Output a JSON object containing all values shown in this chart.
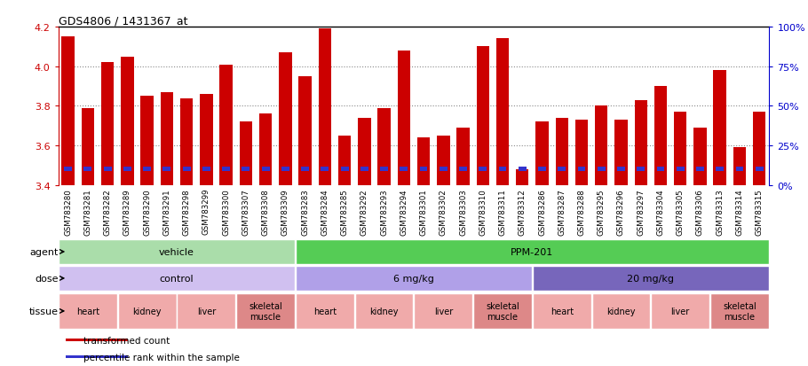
{
  "title": "GDS4806 / 1431367_at",
  "samples": [
    "GSM783280",
    "GSM783281",
    "GSM783282",
    "GSM783289",
    "GSM783290",
    "GSM783291",
    "GSM783298",
    "GSM783299",
    "GSM783300",
    "GSM783307",
    "GSM783308",
    "GSM783309",
    "GSM783283",
    "GSM783284",
    "GSM783285",
    "GSM783292",
    "GSM783293",
    "GSM783294",
    "GSM783301",
    "GSM783302",
    "GSM783303",
    "GSM783310",
    "GSM783311",
    "GSM783312",
    "GSM783286",
    "GSM783287",
    "GSM783288",
    "GSM783295",
    "GSM783296",
    "GSM783297",
    "GSM783304",
    "GSM783305",
    "GSM783306",
    "GSM783313",
    "GSM783314",
    "GSM783315"
  ],
  "bar_values": [
    4.15,
    3.79,
    4.02,
    4.05,
    3.85,
    3.87,
    3.84,
    3.86,
    4.01,
    3.72,
    3.76,
    4.07,
    3.95,
    4.19,
    3.65,
    3.74,
    3.79,
    4.08,
    3.64,
    3.65,
    3.69,
    4.1,
    4.14,
    3.48,
    3.72,
    3.74,
    3.73,
    3.8,
    3.73,
    3.83,
    3.9,
    3.77,
    3.69,
    3.98,
    3.59,
    3.77
  ],
  "blue_percentiles": [
    10,
    8,
    8,
    8,
    9,
    10,
    9,
    9,
    9,
    8,
    8,
    8,
    9,
    9,
    10,
    8,
    8,
    9,
    8,
    8,
    8,
    8,
    8,
    8,
    8,
    8,
    8,
    8,
    8,
    8,
    9,
    8,
    8,
    9,
    8,
    8
  ],
  "ymin": 3.4,
  "ymax": 4.2,
  "yticks_left": [
    3.4,
    3.6,
    3.8,
    4.0,
    4.2
  ],
  "yticks_right": [
    0,
    25,
    50,
    75,
    100
  ],
  "bar_color": "#cc0000",
  "blue_color": "#3333cc",
  "agent_groups": [
    {
      "label": "vehicle",
      "start": 0,
      "end": 11,
      "color": "#aaddaa"
    },
    {
      "label": "PPM-201",
      "start": 12,
      "end": 35,
      "color": "#55cc55"
    }
  ],
  "dose_groups": [
    {
      "label": "control",
      "start": 0,
      "end": 11,
      "color": "#d0c0f0"
    },
    {
      "label": "6 mg/kg",
      "start": 12,
      "end": 23,
      "color": "#b0a0e8"
    },
    {
      "label": "20 mg/kg",
      "start": 24,
      "end": 35,
      "color": "#7766bb"
    }
  ],
  "tissue_groups": [
    {
      "label": "heart",
      "start": 0,
      "end": 2,
      "color": "#f0aaaa"
    },
    {
      "label": "kidney",
      "start": 3,
      "end": 5,
      "color": "#f0aaaa"
    },
    {
      "label": "liver",
      "start": 6,
      "end": 8,
      "color": "#f0aaaa"
    },
    {
      "label": "skeletal\nmuscle",
      "start": 9,
      "end": 11,
      "color": "#dd8888"
    },
    {
      "label": "heart",
      "start": 12,
      "end": 14,
      "color": "#f0aaaa"
    },
    {
      "label": "kidney",
      "start": 15,
      "end": 17,
      "color": "#f0aaaa"
    },
    {
      "label": "liver",
      "start": 18,
      "end": 20,
      "color": "#f0aaaa"
    },
    {
      "label": "skeletal\nmuscle",
      "start": 21,
      "end": 23,
      "color": "#dd8888"
    },
    {
      "label": "heart",
      "start": 24,
      "end": 26,
      "color": "#f0aaaa"
    },
    {
      "label": "kidney",
      "start": 27,
      "end": 29,
      "color": "#f0aaaa"
    },
    {
      "label": "liver",
      "start": 30,
      "end": 32,
      "color": "#f0aaaa"
    },
    {
      "label": "skeletal\nmuscle",
      "start": 33,
      "end": 35,
      "color": "#dd8888"
    }
  ],
  "row_labels": [
    "agent",
    "dose",
    "tissue"
  ],
  "legend_items": [
    {
      "label": "transformed count",
      "color": "#cc0000",
      "marker": "s"
    },
    {
      "label": "percentile rank within the sample",
      "color": "#3333cc",
      "marker": "s"
    }
  ],
  "background_color": "#ffffff",
  "grid_color": "#888888",
  "left_tick_color": "#cc0000",
  "right_tick_color": "#0000cc"
}
